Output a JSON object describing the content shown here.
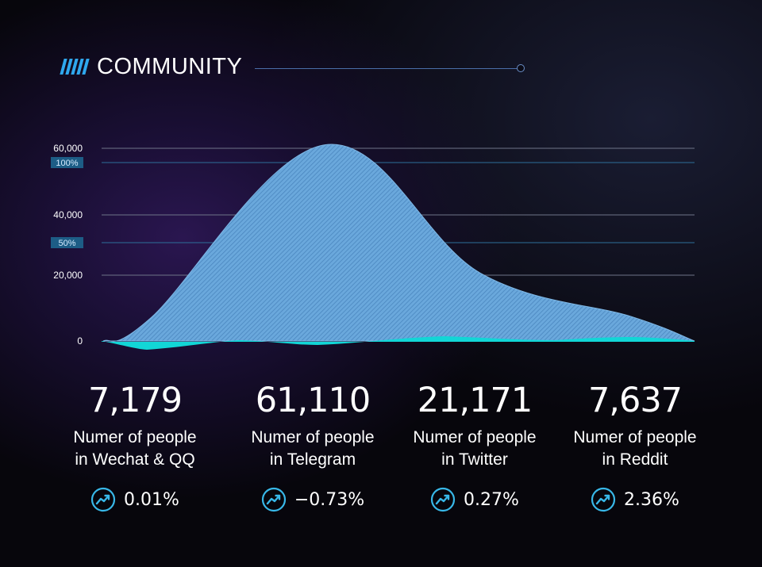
{
  "header": {
    "title": "COMMUNITY"
  },
  "chart_data": {
    "type": "area",
    "categories": [
      "Wechat & QQ",
      "Telegram",
      "Twitter",
      "Reddit"
    ],
    "series": [
      {
        "values": [
          7179,
          61110,
          21171,
          7637
        ]
      }
    ],
    "y_ticks": [
      "0",
      "20,000",
      "40,000",
      "60,000"
    ],
    "pct_ticks": [
      "50%",
      "100%"
    ],
    "ylim": [
      0,
      60000
    ],
    "grid": true,
    "colors": {
      "area": "#5f9ed6",
      "baseline": "#12d6d6",
      "grid": "#6e7488",
      "pct_grid": "#2d6f9a"
    }
  },
  "stats": [
    {
      "value": "7,179",
      "desc_line1": "Numer of people",
      "desc_line2": "in Wechat & QQ",
      "change": "0.01%"
    },
    {
      "value": "61,110",
      "desc_line1": "Numer of people",
      "desc_line2": "in Telegram",
      "change": "−0.73%"
    },
    {
      "value": "21,171",
      "desc_line1": "Numer of people",
      "desc_line2": "in Twitter",
      "change": "0.27%"
    },
    {
      "value": "7,637",
      "desc_line1": "Numer of people",
      "desc_line2": "in Reddit",
      "change": "2.36%"
    }
  ],
  "icons": {
    "trend": "trend-up-icon",
    "title": "stripes-icon"
  }
}
